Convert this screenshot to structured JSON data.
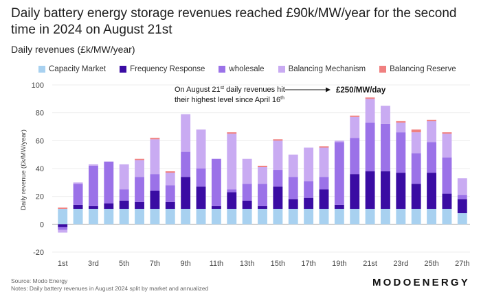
{
  "chart_data": {
    "type": "bar",
    "stacked": true,
    "title": "Daily battery energy storage revenues reached £90k/MW/year for the second time in 2024 on August 21st",
    "subtitle": "Daily revenues (£k/MW/year)",
    "ylabel": "Daily revenue (£k/MW/year)",
    "xlabel": "",
    "ylim": [
      -20,
      100
    ],
    "yticks": [
      -20,
      0,
      20,
      40,
      60,
      80,
      100
    ],
    "categories": [
      "1st",
      "2nd",
      "3rd",
      "4th",
      "5th",
      "6th",
      "7th",
      "8th",
      "9th",
      "10th",
      "11th",
      "12th",
      "13th",
      "14th",
      "15th",
      "16th",
      "17th",
      "18th",
      "19th",
      "20th",
      "21st",
      "22nd",
      "23rd",
      "24th",
      "25th",
      "26th",
      "27th"
    ],
    "tick_labels": [
      "1st",
      "3rd",
      "5th",
      "7th",
      "9th",
      "11th",
      "13th",
      "15th",
      "17th",
      "19th",
      "21st",
      "23rd",
      "25th",
      "27th"
    ],
    "legend_position": "top",
    "series": [
      {
        "name": "Capacity Market",
        "color": "#a8d1f0",
        "values": [
          11,
          11,
          11,
          11,
          11,
          11,
          11,
          11,
          11,
          11,
          11,
          11,
          11,
          11,
          11,
          11,
          11,
          11,
          11,
          11,
          11,
          11,
          11,
          11,
          11,
          11,
          8
        ]
      },
      {
        "name": "Frequency Response",
        "color": "#3a0ca3",
        "values": [
          -2,
          3,
          2,
          4,
          6,
          5,
          13,
          5,
          23,
          16,
          2,
          12,
          6,
          2,
          16,
          7,
          8,
          14,
          3,
          25,
          27,
          27,
          26,
          18,
          26,
          11,
          10
        ]
      },
      {
        "name": "wholesale",
        "color": "#9b72e8",
        "values": [
          -2,
          15,
          29,
          30,
          8,
          18,
          12,
          12,
          18,
          13,
          34,
          2,
          12,
          16,
          12,
          16,
          12,
          9,
          45,
          26,
          35,
          34,
          29,
          22,
          22,
          26,
          3
        ]
      },
      {
        "name": "Balancing Mechanism",
        "color": "#c9abf2",
        "values": [
          -2,
          1,
          1,
          0,
          18,
          12,
          25,
          9,
          27,
          28,
          0,
          40,
          18,
          12,
          21,
          16,
          24,
          21,
          1,
          15,
          17,
          13,
          7,
          15,
          15,
          17,
          12
        ]
      },
      {
        "name": "Balancing Reserve",
        "color": "#f08080",
        "values": [
          1,
          0,
          0,
          0,
          0,
          1,
          1,
          1,
          0,
          0,
          0,
          1,
          0,
          1,
          1,
          0,
          0,
          1,
          0,
          1,
          1,
          0,
          1,
          2,
          1,
          1,
          0
        ]
      }
    ],
    "annotations": [
      {
        "text_line1": "On August 21",
        "sup1": "st",
        "text_line1_end": " daily revenues hit",
        "text_line2": "their highest level since April 16",
        "sup2": "th",
        "callout": "£250/MW/day",
        "target_category": "21st"
      }
    ]
  },
  "source": "Source: Modo Energy",
  "notes": "Notes: Daily battery revenues in August 2024 split by market and annualized",
  "brand": "MODOENERGY"
}
